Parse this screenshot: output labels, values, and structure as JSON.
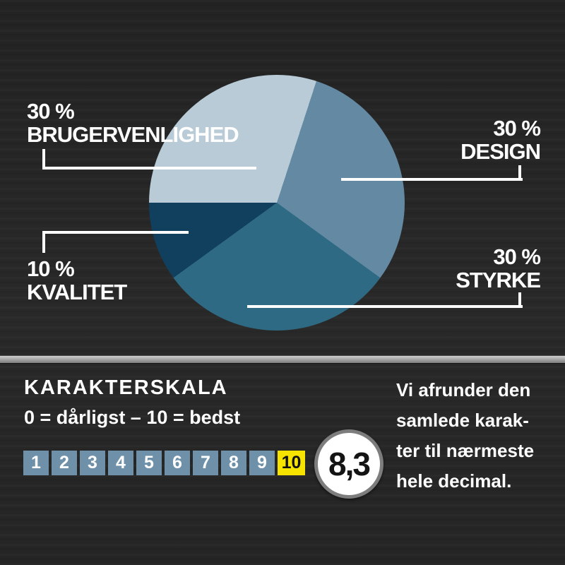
{
  "pie": {
    "slices": [
      {
        "pct": "30 %",
        "name": "BRUGERVENLIGHED"
      },
      {
        "pct": "30 %",
        "name": "DESIGN"
      },
      {
        "pct": "30 %",
        "name": "STYRKE"
      },
      {
        "pct": "10 %",
        "name": "KVALITET"
      }
    ]
  },
  "chart_data": {
    "type": "pie",
    "categories": [
      "BRUGERVENLIGHED",
      "DESIGN",
      "STYRKE",
      "KVALITET"
    ],
    "values": [
      30,
      30,
      30,
      10
    ],
    "unit": "%",
    "colors": [
      "#b8cbd6",
      "#6389a3",
      "#2e6a83",
      "#10405e"
    ],
    "start_angle_deg": 18,
    "draw_order": [
      1,
      2,
      3,
      0
    ],
    "direction": "clockwise",
    "legend_position": "callouts",
    "title": ""
  },
  "scale": {
    "title": "KARAKTERSKALA",
    "subtitle": "0 = dårligst – 10 = bedst",
    "numbers": [
      "1",
      "2",
      "3",
      "4",
      "5",
      "6",
      "7",
      "8",
      "9",
      "10"
    ],
    "highlight": "10",
    "score": "8,3",
    "box_color": "#6e90a8",
    "highlight_color": "#f6e400"
  },
  "note": {
    "lines": [
      "Vi afrunder den",
      "samlede karak-",
      "ter til nærmeste",
      "hele decimal."
    ]
  },
  "colors": {
    "background": "#262626",
    "text": "#ffffff",
    "connector": "#ffffff",
    "divider": "#a8a8a8",
    "badge_ring": "#7d7d7d",
    "badge_bg": "#ffffff",
    "badge_text": "#141414"
  }
}
